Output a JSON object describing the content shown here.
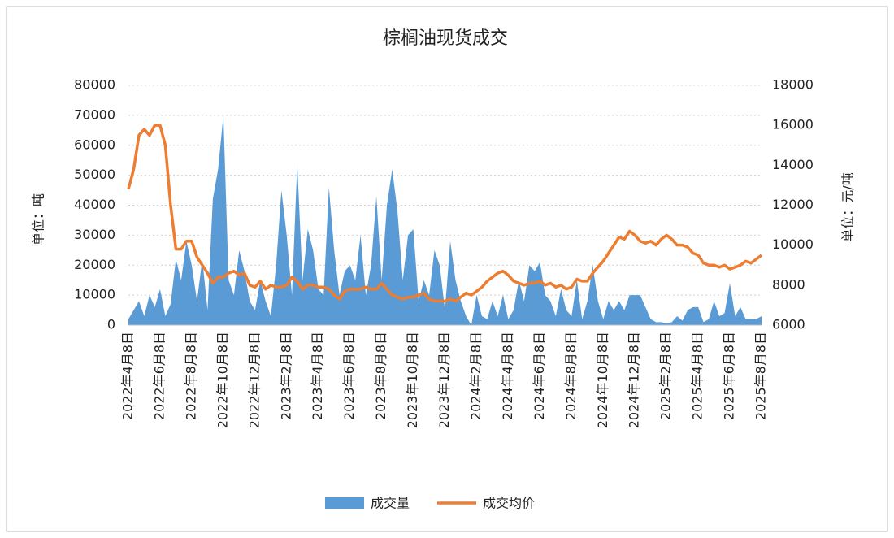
{
  "chart_data": {
    "type": "area-line",
    "title": "棕榈油现货成交",
    "y_label": "单位：吨",
    "y2_label": "单位：元/吨",
    "categories": [
      "2022年4月8日",
      null,
      null,
      null,
      null,
      null,
      "2022年6月8日",
      null,
      null,
      null,
      null,
      null,
      "2022年8月8日",
      null,
      null,
      null,
      null,
      null,
      "2022年10月8日",
      null,
      null,
      null,
      null,
      null,
      "2022年12月8日",
      null,
      null,
      null,
      null,
      null,
      "2023年2月8日",
      null,
      null,
      null,
      null,
      null,
      "2023年4月8日",
      null,
      null,
      null,
      null,
      null,
      "2023年6月8日",
      null,
      null,
      null,
      null,
      null,
      "2023年8月8日",
      null,
      null,
      null,
      null,
      null,
      "2023年10月8日",
      null,
      null,
      null,
      null,
      null,
      "2023年12月8日",
      null,
      null,
      null,
      null,
      null,
      "2024年2月8日",
      null,
      null,
      null,
      null,
      null,
      "2024年4月8日",
      null,
      null,
      null,
      null,
      null,
      "2024年6月8日",
      null,
      null,
      null,
      null,
      null,
      "2024年8月8日",
      null,
      null,
      null,
      null,
      null,
      "2024年10月8日",
      null,
      null,
      null,
      null,
      null,
      "2024年12月8日",
      null,
      null,
      null,
      null,
      null,
      "2025年2月8日",
      null,
      null,
      null,
      null,
      null,
      "2025年4月8日",
      null,
      null,
      null,
      null,
      null,
      "2025年6月8日",
      null,
      null,
      null,
      null,
      null,
      "2025年8月8日"
    ],
    "series": [
      {
        "name": "成交量",
        "color": "#5b9bd5",
        "kind": "area",
        "axis": "y",
        "values": [
          2000,
          5000,
          8000,
          3000,
          10000,
          6000,
          12000,
          3000,
          7000,
          22000,
          15000,
          28000,
          20000,
          8000,
          22000,
          5000,
          42000,
          52000,
          70000,
          15000,
          10000,
          25000,
          18000,
          8000,
          5000,
          15000,
          8000,
          3000,
          20000,
          45000,
          30000,
          10000,
          54000,
          15000,
          32000,
          25000,
          12000,
          10000,
          46000,
          25000,
          10000,
          18000,
          20000,
          15000,
          30000,
          10000,
          20000,
          43000,
          15000,
          40000,
          52000,
          38000,
          15000,
          30000,
          32000,
          8000,
          15000,
          10000,
          25000,
          20000,
          5000,
          28000,
          15000,
          8000,
          3000,
          0,
          10000,
          3000,
          2000,
          8000,
          3000,
          10000,
          2000,
          5000,
          15000,
          8000,
          20000,
          18000,
          21000,
          10000,
          8000,
          3000,
          12000,
          5000,
          3000,
          15000,
          2000,
          8000,
          20000,
          8000,
          2000,
          8000,
          5000,
          8000,
          5000,
          10000,
          10000,
          10000,
          6000,
          2000,
          1000,
          1000,
          500,
          1000,
          3000,
          1500,
          5000,
          6000,
          6000,
          1000,
          2000,
          8000,
          3000,
          4000,
          14000,
          3000,
          6000,
          2000,
          2000,
          2000,
          3000
        ]
      },
      {
        "name": "成交均价",
        "color": "#ed7d31",
        "kind": "line",
        "axis": "y2",
        "values": [
          12800,
          13800,
          15500,
          15800,
          15500,
          16000,
          16000,
          15000,
          12000,
          9800,
          9800,
          10200,
          10200,
          9400,
          9000,
          8600,
          8100,
          8400,
          8400,
          8600,
          8700,
          8500,
          8600,
          8000,
          7900,
          8200,
          7800,
          8000,
          7900,
          7900,
          8000,
          8400,
          8200,
          7800,
          8000,
          8000,
          7900,
          7900,
          7800,
          7500,
          7300,
          7700,
          7800,
          7800,
          7800,
          7900,
          7800,
          7800,
          8100,
          7800,
          7500,
          7400,
          7300,
          7400,
          7400,
          7500,
          7600,
          7300,
          7200,
          7200,
          7200,
          7300,
          7200,
          7400,
          7600,
          7500,
          7700,
          7900,
          8200,
          8400,
          8600,
          8700,
          8500,
          8200,
          8100,
          8000,
          8100,
          8100,
          8200,
          8000,
          8100,
          7900,
          8000,
          7800,
          7900,
          8300,
          8200,
          8200,
          8600,
          8900,
          9200,
          9600,
          10000,
          10400,
          10300,
          10700,
          10500,
          10200,
          10100,
          10200,
          10000,
          10300,
          10500,
          10300,
          10000,
          10000,
          9900,
          9600,
          9500,
          9100,
          9000,
          9000,
          8900,
          9000,
          8800,
          8900,
          9000,
          9200,
          9100,
          9300,
          9500
        ]
      }
    ],
    "ylim": [
      0,
      80000
    ],
    "yticks": [
      0,
      10000,
      20000,
      30000,
      40000,
      50000,
      60000,
      70000,
      80000
    ],
    "y2lim": [
      6000,
      18000
    ],
    "y2ticks": [
      6000,
      8000,
      10000,
      12000,
      14000,
      16000,
      18000
    ],
    "grid": true,
    "legend": "bottom"
  }
}
